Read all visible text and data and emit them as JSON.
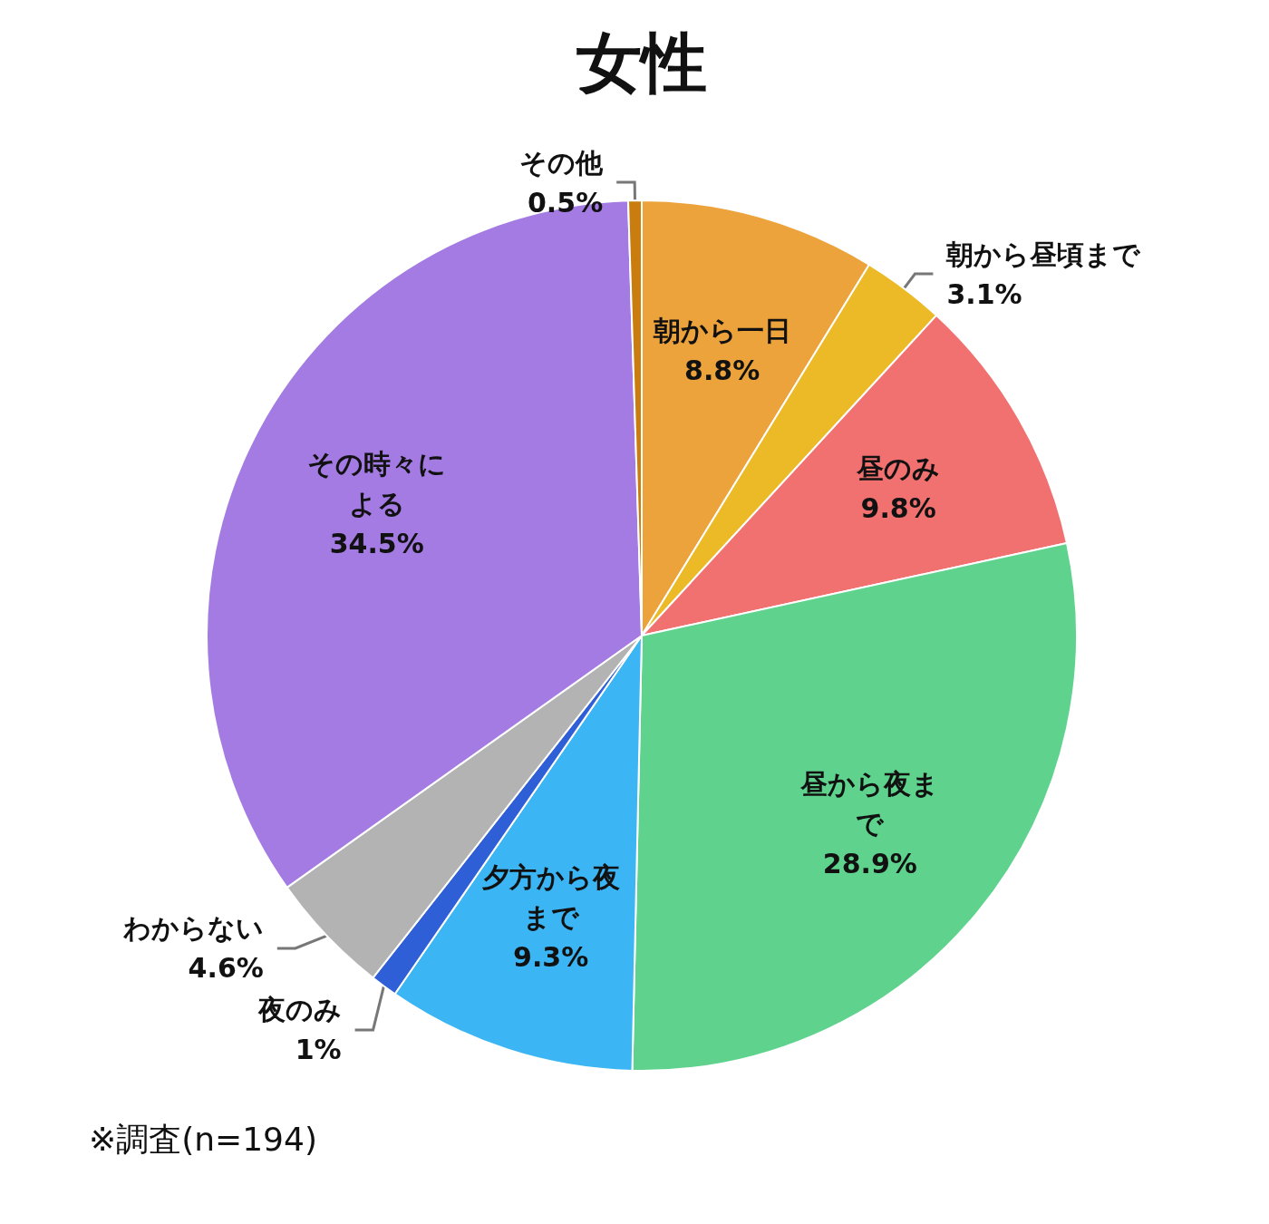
{
  "chart_data": {
    "type": "pie",
    "title": "女性",
    "categories": [
      "朝から一日",
      "朝から昼頃まで",
      "昼のみ",
      "昼から夜まで",
      "夕方から夜まで",
      "夜のみ",
      "わからない",
      "その時々による",
      "その他"
    ],
    "values": [
      8.8,
      3.1,
      9.8,
      28.9,
      9.3,
      1,
      4.6,
      34.5,
      0.5
    ],
    "colors": [
      "#eda33c",
      "#ecba26",
      "#f07170",
      "#5fd38d",
      "#3bb5f3",
      "#2f5fd6",
      "#b3b3b3",
      "#a37be3",
      "#c87d0e"
    ],
    "value_labels": [
      "8.8%",
      "3.1%",
      "9.8%",
      "28.9%",
      "9.3%",
      "1%",
      "4.6%",
      "34.5%",
      "0.5%"
    ],
    "legend": false,
    "annotations": [
      "※調査(n=194)"
    ]
  }
}
